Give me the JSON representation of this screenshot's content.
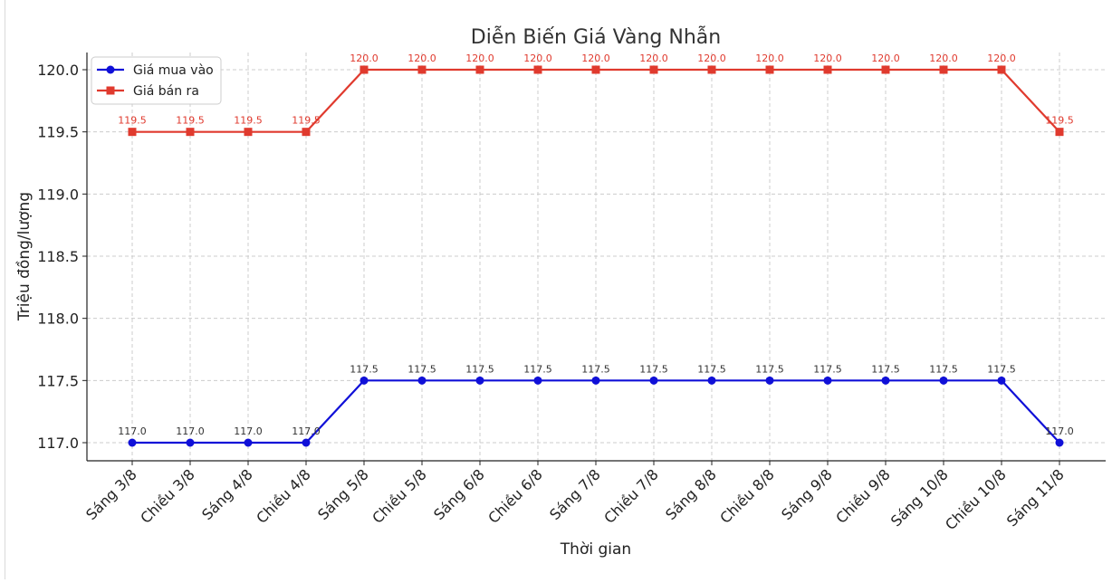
{
  "chart_data": {
    "type": "line",
    "title": "Diễn Biến Giá Vàng Nhẫn",
    "xlabel": "Thời gian",
    "ylabel": "Triệu đồng/lượng",
    "categories": [
      "Sáng 3/8",
      "Chiều 3/8",
      "Sáng 4/8",
      "Chiều 4/8",
      "Sáng 5/8",
      "Chiều 5/8",
      "Sáng 6/8",
      "Chiều 6/8",
      "Sáng 7/8",
      "Chiều 7/8",
      "Sáng 8/8",
      "Chiều 8/8",
      "Sáng 9/8",
      "Chiều 9/8",
      "Sáng 10/8",
      "Chiều 10/8",
      "Sáng 11/8"
    ],
    "series": [
      {
        "name": "Giá mua vào",
        "color": "#1010d8",
        "marker": "circle",
        "label_color": "#333333",
        "values": [
          117.0,
          117.0,
          117.0,
          117.0,
          117.5,
          117.5,
          117.5,
          117.5,
          117.5,
          117.5,
          117.5,
          117.5,
          117.5,
          117.5,
          117.5,
          117.5,
          117.0
        ]
      },
      {
        "name": "Giá bán ra",
        "color": "#e03a2e",
        "marker": "square",
        "label_color": "#e03a2e",
        "values": [
          119.5,
          119.5,
          119.5,
          119.5,
          120.0,
          120.0,
          120.0,
          120.0,
          120.0,
          120.0,
          120.0,
          120.0,
          120.0,
          120.0,
          120.0,
          120.0,
          119.5
        ]
      }
    ],
    "yticks": [
      "117.0",
      "117.5",
      "118.0",
      "118.5",
      "119.0",
      "119.5",
      "120.0"
    ],
    "ylim": [
      116.9,
      120.15
    ],
    "grid": true,
    "legend_position": "top-left"
  }
}
